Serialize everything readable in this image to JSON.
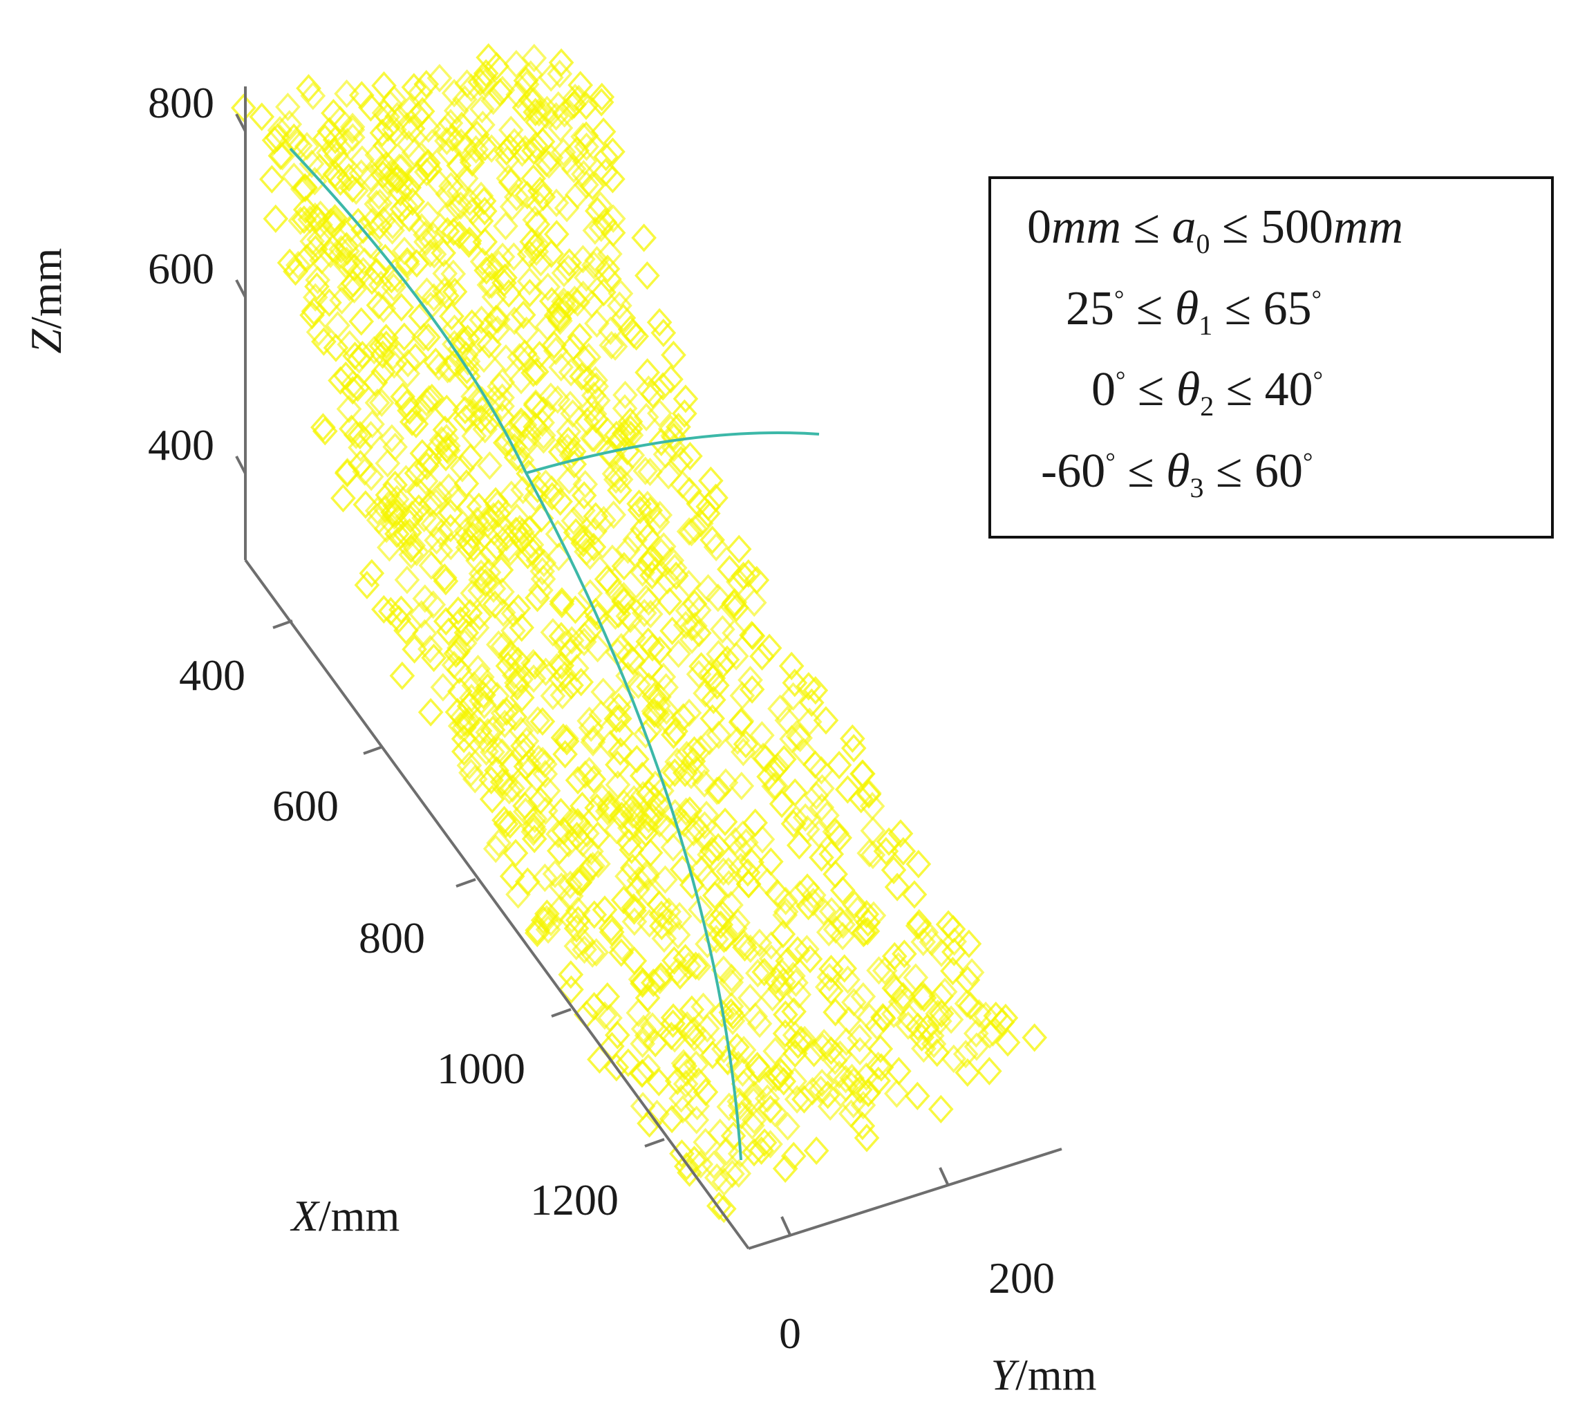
{
  "chart_data": {
    "type": "scatter",
    "projection": "3d",
    "marker": "diamond-open",
    "marker_color": "#f5f500",
    "curve_color": "#3cb8a8",
    "axes": {
      "x": {
        "label_var": "X",
        "label_unit": "/mm",
        "ticks": [
          "400",
          "600",
          "800",
          "1000",
          "1200"
        ],
        "range": [
          300,
          1300
        ]
      },
      "y": {
        "label_var": "Y",
        "label_unit": "/mm",
        "ticks": [
          "0",
          "200"
        ],
        "range": [
          -100,
          300
        ]
      },
      "z": {
        "label_var": "Z",
        "label_unit": "/mm",
        "ticks": [
          "400",
          "600",
          "800"
        ],
        "range": [
          300,
          850
        ]
      }
    },
    "legend": {
      "placement": "top-right",
      "lines": [
        {
          "lhs": "0",
          "lhs_unit": "mm",
          "rel1": "≤",
          "var": "a",
          "sub": "0",
          "rel2": "≤",
          "rhs": "500",
          "rhs_unit": "mm"
        },
        {
          "lhs": "25",
          "lhs_deg": "°",
          "rel1": "≤",
          "var": "θ",
          "sub": "1",
          "rel2": "≤",
          "rhs": "65",
          "rhs_deg": "°"
        },
        {
          "lhs": "0",
          "lhs_deg": "°",
          "rel1": "≤",
          "var": "θ",
          "sub": "2",
          "rel2": "≤",
          "rhs": "40",
          "rhs_deg": "°"
        },
        {
          "lhs": "-60",
          "lhs_deg": "°",
          "rel1": "≤",
          "var": "θ",
          "sub": "3",
          "rel2": "≤",
          "rhs": "60",
          "rhs_deg": "°"
        }
      ]
    }
  }
}
